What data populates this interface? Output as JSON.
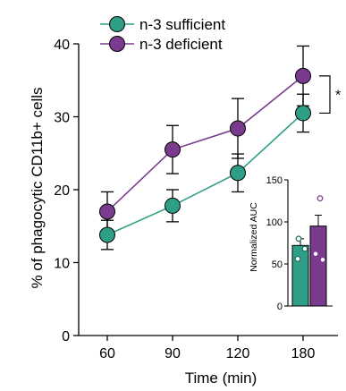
{
  "chart_data": [
    {
      "type": "line",
      "title": "",
      "xlabel": "Time (min)",
      "ylabel": "% of phagocytic CD11b+ cells",
      "categories": [
        "60",
        "90",
        "120",
        "180"
      ],
      "ylim": [
        0,
        40
      ],
      "yticks": [
        "0",
        "10",
        "20",
        "30",
        "40"
      ],
      "grid": false,
      "legend": "top-left",
      "series": [
        {
          "name": "n-3 sufficient",
          "color": "#2e9e87",
          "values": [
            13.8,
            17.8,
            22.3,
            30.5
          ],
          "err": [
            2.0,
            2.2,
            2.6,
            2.6
          ]
        },
        {
          "name": "n-3 deficient",
          "color": "#7a3b8f",
          "values": [
            17.0,
            25.5,
            28.4,
            35.6
          ],
          "err": [
            2.7,
            3.3,
            4.1,
            4.1
          ]
        }
      ],
      "annotation": "*"
    },
    {
      "type": "bar",
      "title": "",
      "xlabel": "",
      "ylabel": "Normalized AUC",
      "categories": [
        "n-3 sufficient",
        "n-3 deficient"
      ],
      "ylim": [
        0,
        150
      ],
      "yticks": [
        "0",
        "50",
        "100",
        "150"
      ],
      "values": [
        72,
        95
      ],
      "err": [
        8,
        13
      ],
      "colors": [
        "#2e9e87",
        "#7a3b8f"
      ],
      "points": [
        [
          80,
          68,
          56
        ],
        [
          128,
          62,
          55
        ]
      ]
    }
  ],
  "legend": {
    "items": [
      {
        "label": "n-3 sufficient",
        "color": "#2e9e87"
      },
      {
        "label": "n-3 deficient",
        "color": "#7a3b8f"
      }
    ]
  }
}
